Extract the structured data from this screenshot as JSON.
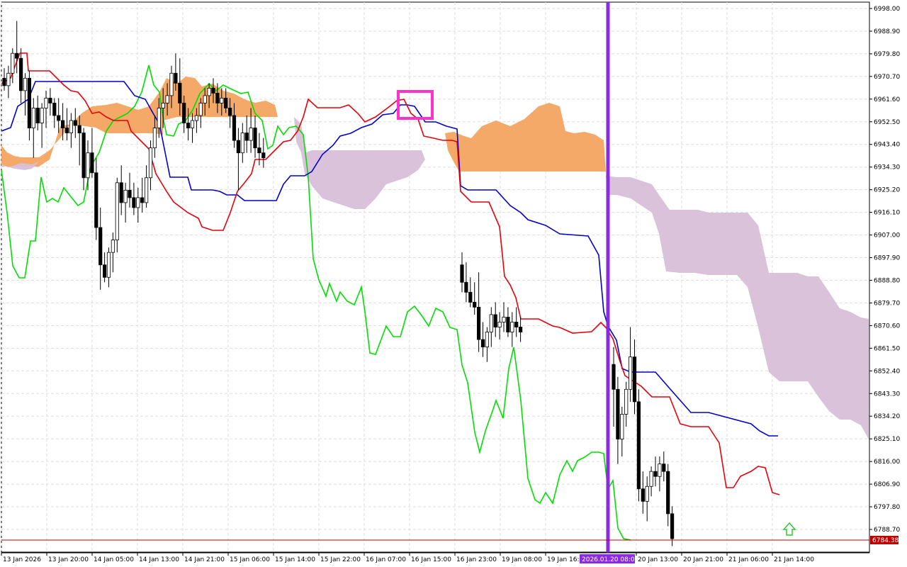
{
  "chart_data": {
    "type": "candlestick",
    "title": "",
    "y_range": [
      6780.0,
      6999.0
    ],
    "y_ticks": [
      "6998.00",
      "6988.90",
      "6979.80",
      "6970.70",
      "6961.60",
      "6952.50",
      "6943.40",
      "6934.30",
      "6925.20",
      "6916.10",
      "6907.00",
      "6897.90",
      "6888.80",
      "6879.70",
      "6870.60",
      "6861.50",
      "6852.40",
      "6843.30",
      "6834.20",
      "6825.10",
      "6816.00",
      "6806.90",
      "6797.80",
      "6788.70"
    ],
    "x_labels": [
      "13 Jan 2026",
      "13 Jan 20:00",
      "14 Jan 05:00",
      "14 Jan 13:00",
      "14 Jan 21:00",
      "15 Jan 06:00",
      "15 Jan 14:00",
      "15 Jan 22:00",
      "16 Jan 07:00",
      "16 Jan 15:00",
      "16 Jan 23:00",
      "19 Jan 08:00",
      "19 Jan 16:00",
      "20 Jan 13:00",
      "20 Jan 21:00",
      "21 Jan 06:00",
      "21 Jan 14:00"
    ],
    "current_price": "6784.38",
    "cursor_time": "2026.01.20 08:00",
    "current_price_value": 6784.38,
    "colors": {
      "tenkan": "#e8000b",
      "kijun": "#0000d0",
      "chikou": "#00e000",
      "cloud_bull": "#f4a460",
      "cloud_bear": "#d8bfd8",
      "cursor_line": "#8a2be2",
      "highlight_box": "#ff33cc",
      "arrow": "#22cc22",
      "grid": "#d9d9d9",
      "price_line": "#c00000"
    },
    "candles": [
      [
        6970,
        6974,
        6965,
        6967
      ],
      [
        6967,
        6975,
        6962,
        6972
      ],
      [
        6972,
        6982,
        6968,
        6980
      ],
      [
        6980,
        6993,
        6972,
        6978
      ],
      [
        6978,
        6982,
        6960,
        6965
      ],
      [
        6965,
        6972,
        6955,
        6970
      ],
      [
        6970,
        6973,
        6945,
        6950
      ],
      [
        6950,
        6962,
        6938,
        6958
      ],
      [
        6958,
        6963,
        6949,
        6952
      ],
      [
        6952,
        6960,
        6942,
        6958
      ],
      [
        6958,
        6965,
        6950,
        6962
      ],
      [
        6962,
        6966,
        6955,
        6960
      ],
      [
        6960,
        6962,
        6950,
        6955
      ],
      [
        6955,
        6962,
        6948,
        6953
      ],
      [
        6953,
        6960,
        6945,
        6950
      ],
      [
        6950,
        6958,
        6945,
        6948
      ],
      [
        6948,
        6956,
        6942,
        6953
      ],
      [
        6953,
        6958,
        6946,
        6951
      ],
      [
        6951,
        6955,
        6935,
        6948
      ],
      [
        6948,
        6950,
        6925,
        6930
      ],
      [
        6930,
        6945,
        6925,
        6940
      ],
      [
        6940,
        6950,
        6930,
        6932
      ],
      [
        6932,
        6938,
        6905,
        6910
      ],
      [
        6910,
        6918,
        6885,
        6895
      ],
      [
        6895,
        6900,
        6888,
        6890
      ],
      [
        6890,
        6902,
        6886,
        6900
      ],
      [
        6900,
        6908,
        6892,
        6905
      ],
      [
        6905,
        6930,
        6900,
        6928
      ],
      [
        6928,
        6935,
        6915,
        6920
      ],
      [
        6920,
        6928,
        6912,
        6925
      ],
      [
        6925,
        6932,
        6918,
        6922
      ],
      [
        6922,
        6928,
        6915,
        6918
      ],
      [
        6918,
        6926,
        6912,
        6922
      ],
      [
        6922,
        6930,
        6916,
        6920
      ],
      [
        6920,
        6935,
        6918,
        6930
      ],
      [
        6930,
        6945,
        6925,
        6942
      ],
      [
        6942,
        6955,
        6938,
        6950
      ],
      [
        6950,
        6962,
        6946,
        6958
      ],
      [
        6958,
        6966,
        6950,
        6960
      ],
      [
        6960,
        6968,
        6955,
        6963
      ],
      [
        6963,
        6975,
        6958,
        6972
      ],
      [
        6972,
        6980,
        6965,
        6968
      ],
      [
        6968,
        6978,
        6955,
        6960
      ],
      [
        6960,
        6963,
        6948,
        6952
      ],
      [
        6952,
        6958,
        6945,
        6950
      ],
      [
        6950,
        6956,
        6944,
        6953
      ],
      [
        6953,
        6958,
        6948,
        6955
      ],
      [
        6955,
        6962,
        6950,
        6960
      ],
      [
        6960,
        6966,
        6955,
        6963
      ],
      [
        6963,
        6968,
        6958,
        6966
      ],
      [
        6966,
        6970,
        6960,
        6964
      ],
      [
        6964,
        6968,
        6956,
        6960
      ],
      [
        6960,
        6966,
        6955,
        6962
      ],
      [
        6962,
        6966,
        6956,
        6958
      ],
      [
        6958,
        6962,
        6950,
        6955
      ],
      [
        6955,
        6960,
        6942,
        6945
      ],
      [
        6945,
        6950,
        6925,
        6940
      ],
      [
        6940,
        6952,
        6936,
        6948
      ],
      [
        6948,
        6955,
        6940,
        6945
      ],
      [
        6945,
        6958,
        6940,
        6950
      ],
      [
        6950,
        6955,
        6938,
        6942
      ],
      [
        6942,
        6948,
        6935,
        6940
      ],
      [
        6940,
        6946,
        6934,
        6938
      ],
      [
        6895,
        6900,
        6884,
        6888
      ],
      [
        6888,
        6896,
        6880,
        6884
      ],
      [
        6884,
        6890,
        6878,
        6880
      ],
      [
        6880,
        6888,
        6875,
        6878
      ],
      [
        6878,
        6892,
        6860,
        6865
      ],
      [
        6865,
        6872,
        6858,
        6862
      ],
      [
        6862,
        6870,
        6856,
        6868
      ],
      [
        6868,
        6878,
        6862,
        6875
      ],
      [
        6875,
        6880,
        6866,
        6870
      ],
      [
        6870,
        6876,
        6865,
        6872
      ],
      [
        6872,
        6880,
        6868,
        6874
      ],
      [
        6874,
        6878,
        6866,
        6868
      ],
      [
        6868,
        6876,
        6862,
        6872
      ],
      [
        6872,
        6878,
        6866,
        6870
      ],
      [
        6870,
        6874,
        6864,
        6868
      ],
      [
        6855,
        6862,
        6830,
        6845
      ],
      [
        6845,
        6850,
        6815,
        6825
      ],
      [
        6825,
        6838,
        6818,
        6835
      ],
      [
        6835,
        6848,
        6830,
        6845
      ],
      [
        6845,
        6870,
        6840,
        6858
      ],
      [
        6858,
        6865,
        6835,
        6840
      ],
      [
        6840,
        6845,
        6800,
        6805
      ],
      [
        6805,
        6812,
        6795,
        6800
      ],
      [
        6800,
        6810,
        6792,
        6806
      ],
      [
        6806,
        6814,
        6802,
        6812
      ],
      [
        6812,
        6818,
        6806,
        6810
      ],
      [
        6810,
        6818,
        6804,
        6815
      ],
      [
        6815,
        6820,
        6808,
        6812
      ],
      [
        6812,
        6815,
        6790,
        6795
      ],
      [
        6795,
        6798,
        6782,
        6785
      ]
    ]
  }
}
